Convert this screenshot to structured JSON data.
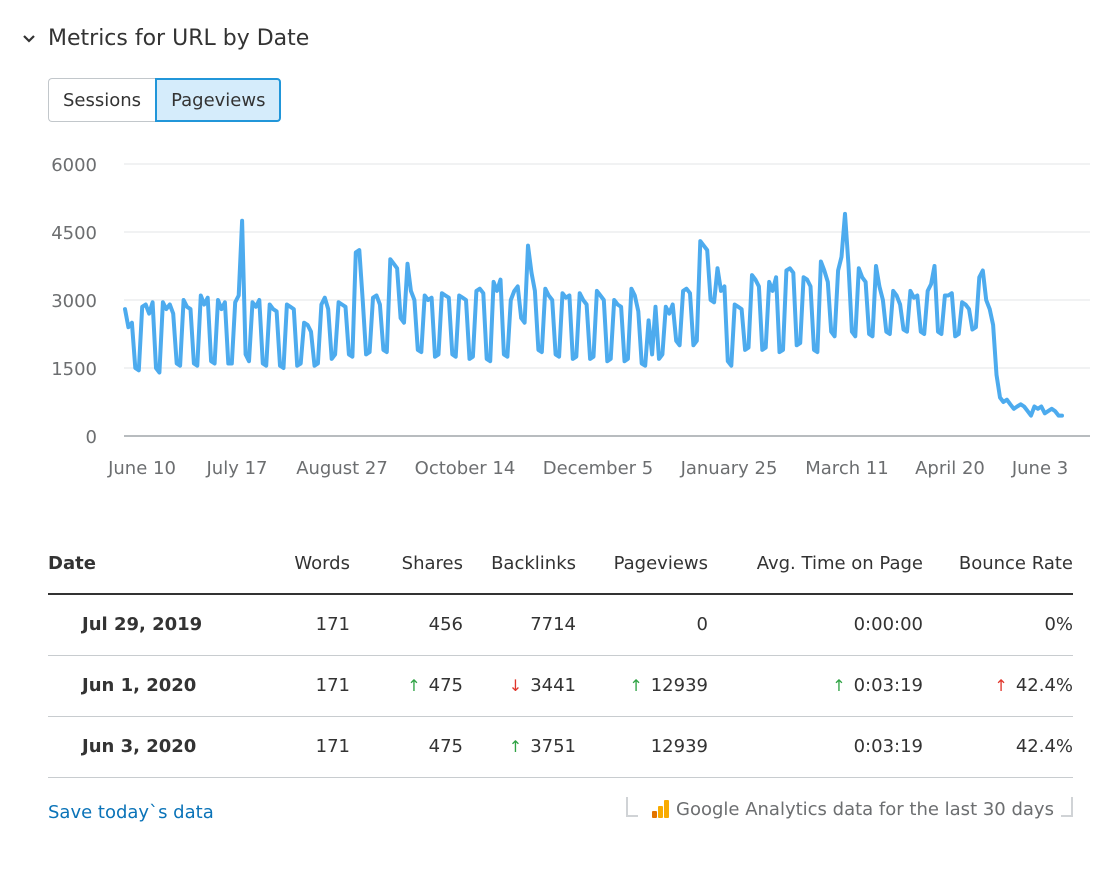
{
  "header": {
    "title": "Metrics for URL by Date",
    "toggle_icon": "chevron-down-icon"
  },
  "tabs": [
    {
      "label": "Sessions",
      "active": false
    },
    {
      "label": "Pageviews",
      "active": true
    }
  ],
  "chart_data": {
    "type": "line",
    "series_color": "#4dabee",
    "grid": true,
    "ylim": [
      0,
      6000
    ],
    "y_ticks": [
      0,
      1500,
      3000,
      4500,
      6000
    ],
    "x_tick_labels": [
      "June 10",
      "July 17",
      "August 27",
      "October 14",
      "December 5",
      "January 25",
      "March 11",
      "April 20",
      "June 3"
    ],
    "values": [
      2800,
      2400,
      2500,
      1500,
      1450,
      2850,
      2900,
      2700,
      2950,
      1500,
      1400,
      2950,
      2800,
      2900,
      2700,
      1600,
      1550,
      3000,
      2850,
      2800,
      1600,
      1550,
      3100,
      2900,
      3050,
      1650,
      1600,
      3000,
      2800,
      2950,
      1600,
      1600,
      2950,
      3100,
      4750,
      1800,
      1650,
      2950,
      2850,
      3000,
      1600,
      1550,
      2900,
      2800,
      2750,
      1550,
      1500,
      2900,
      2850,
      2800,
      1550,
      1600,
      2500,
      2450,
      2300,
      1550,
      1600,
      2900,
      3050,
      2800,
      1700,
      1800,
      2950,
      2900,
      2850,
      1800,
      1750,
      4050,
      4100,
      3000,
      1800,
      1850,
      3050,
      3100,
      2900,
      1900,
      1850,
      3900,
      3800,
      3700,
      2600,
      2500,
      3800,
      3200,
      3000,
      1900,
      1850,
      3100,
      3000,
      3050,
      1750,
      1800,
      3150,
      3100,
      3050,
      1800,
      1750,
      3100,
      3050,
      3000,
      1700,
      1750,
      3200,
      3250,
      3150,
      1700,
      1650,
      3400,
      3200,
      3450,
      1800,
      1750,
      3000,
      3200,
      3300,
      2600,
      2500,
      4200,
      3600,
      3200,
      1900,
      1850,
      3250,
      3100,
      3000,
      1800,
      1750,
      3150,
      3050,
      3100,
      1700,
      1750,
      3150,
      3000,
      2900,
      1700,
      1750,
      3200,
      3100,
      3000,
      1650,
      1700,
      3000,
      2900,
      2850,
      1650,
      1700,
      3250,
      3100,
      2750,
      1600,
      1550,
      2550,
      1800,
      2850,
      1700,
      1800,
      2850,
      2700,
      2900,
      2100,
      2000,
      3200,
      3250,
      3150,
      2000,
      2100,
      4300,
      4200,
      4100,
      3000,
      2950,
      3700,
      3200,
      3300,
      1650,
      1550,
      2900,
      2850,
      2800,
      1900,
      1950,
      3550,
      3450,
      3300,
      1900,
      1950,
      3400,
      3200,
      3500,
      1850,
      1900,
      3650,
      3700,
      3600,
      2000,
      2050,
      3500,
      3450,
      3300,
      1900,
      1850,
      3850,
      3650,
      3400,
      2300,
      2200,
      3650,
      3950,
      4900,
      3800,
      2300,
      2200,
      3700,
      3500,
      3400,
      2250,
      2200,
      3750,
      3300,
      3000,
      2300,
      2250,
      3200,
      3100,
      2900,
      2350,
      2300,
      3200,
      3050,
      3100,
      2300,
      2250,
      3200,
      3350,
      3750,
      2300,
      2250,
      3100,
      3100,
      3150,
      2200,
      2250,
      2950,
      2900,
      2800,
      2350,
      2400,
      3500,
      3650,
      3000,
      2800,
      2450,
      1350,
      850,
      750,
      800,
      700,
      600,
      650,
      700,
      650,
      550,
      450,
      650,
      600,
      650,
      500,
      550,
      600,
      550,
      450,
      450
    ]
  },
  "table": {
    "columns": [
      "Date",
      "Words",
      "Shares",
      "Backlinks",
      "Pageviews",
      "Avg. Time on Page",
      "Bounce Rate"
    ],
    "rows": [
      {
        "date": "Jul 29, 2019",
        "cells": [
          {
            "value": "171",
            "trend": null
          },
          {
            "value": "456",
            "trend": null
          },
          {
            "value": "7714",
            "trend": null
          },
          {
            "value": "0",
            "trend": null
          },
          {
            "value": "0:00:00",
            "trend": null
          },
          {
            "value": "0%",
            "trend": null
          }
        ]
      },
      {
        "date": "Jun 1, 2020",
        "cells": [
          {
            "value": "171",
            "trend": null
          },
          {
            "value": "475",
            "trend": "up"
          },
          {
            "value": "3441",
            "trend": "down"
          },
          {
            "value": "12939",
            "trend": "up"
          },
          {
            "value": "0:03:19",
            "trend": "up"
          },
          {
            "value": "42.4%",
            "trend": "up-red"
          }
        ]
      },
      {
        "date": "Jun 3, 2020",
        "cells": [
          {
            "value": "171",
            "trend": null
          },
          {
            "value": "475",
            "trend": null
          },
          {
            "value": "3751",
            "trend": "up"
          },
          {
            "value": "12939",
            "trend": null
          },
          {
            "value": "0:03:19",
            "trend": null
          },
          {
            "value": "42.4%",
            "trend": null
          }
        ]
      }
    ]
  },
  "footer": {
    "save_link": "Save today`s data",
    "ga_note": "Google Analytics data for the last 30 days",
    "ga_icon": "google-analytics-icon"
  },
  "colors": {
    "accent": "#2196d9",
    "line": "#4dabee",
    "link": "#0a73b8",
    "up": "#2fa344",
    "down": "#e0352b"
  }
}
